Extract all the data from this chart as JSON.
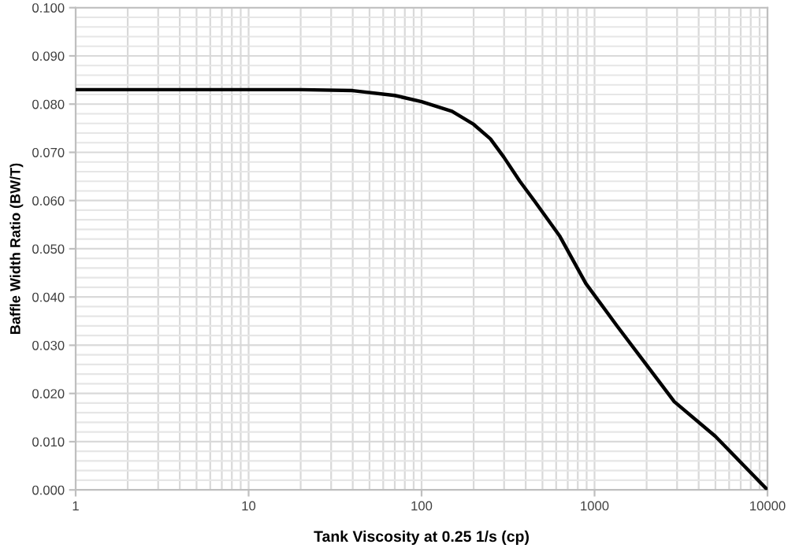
{
  "chart_data": {
    "type": "line",
    "xlabel": "Tank Viscosity at 0.25 1/s (cp)",
    "ylabel": "Baffle Width Ratio (BW/T)",
    "log": "x",
    "x": [
      1,
      3,
      10,
      20,
      40,
      70,
      100,
      150,
      200,
      250,
      299,
      370,
      452,
      630,
      891,
      1349,
      2040,
      2890,
      5000,
      10000
    ],
    "series": [
      {
        "color": "#000000",
        "values": [
          0.083,
          0.083,
          0.083,
          0.083,
          0.0828,
          0.0818,
          0.0805,
          0.0785,
          0.0758,
          0.0728,
          0.069,
          0.064,
          0.0598,
          0.0526,
          0.0428,
          0.034,
          0.0255,
          0.0183,
          0.0111,
          0.0
        ]
      }
    ],
    "xlim": [
      1,
      10000
    ],
    "xticks": [
      1,
      10,
      100,
      1000,
      10000
    ],
    "ylim": [
      0,
      0.1
    ],
    "yticks": [
      {
        "value": 0,
        "label": "0.000"
      },
      {
        "value": 0.01,
        "label": "0.010"
      },
      {
        "value": 0.02,
        "label": "0.020"
      },
      {
        "value": 0.03,
        "label": "0.030"
      },
      {
        "value": 0.04,
        "label": "0.040"
      },
      {
        "value": 0.05,
        "label": "0.050"
      },
      {
        "value": 0.06,
        "label": "0.060"
      },
      {
        "value": 0.07,
        "label": "0.070"
      },
      {
        "value": 0.08,
        "label": "0.080"
      },
      {
        "value": 0.09,
        "label": "0.090"
      },
      {
        "value": 0.1,
        "label": "0.100"
      }
    ],
    "grid": true,
    "line_style": "solid",
    "marker": "none",
    "legend": false
  }
}
